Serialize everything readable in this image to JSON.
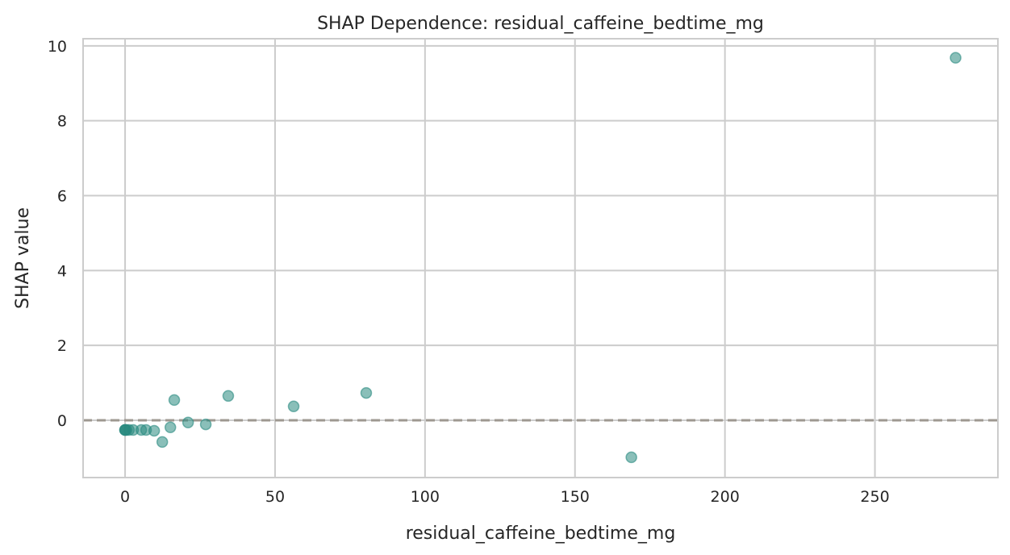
{
  "chart_data": {
    "type": "scatter",
    "title": "SHAP Dependence: residual_caffeine_bedtime_mg",
    "xlabel": "residual_caffeine_bedtime_mg",
    "ylabel": "SHAP value",
    "xlim": [
      -14,
      291
    ],
    "ylim": [
      -1.53,
      10.19
    ],
    "xticks": [
      0,
      50,
      100,
      150,
      200,
      250
    ],
    "yticks": [
      0,
      2,
      4,
      6,
      8,
      10
    ],
    "grid": true,
    "reference_line": {
      "y": 0,
      "style": "dashed",
      "color": "#9e9890"
    },
    "point_color": "#2a8a80",
    "points": [
      {
        "x": 0,
        "y": -0.26
      },
      {
        "x": 0,
        "y": -0.26
      },
      {
        "x": 0,
        "y": -0.26
      },
      {
        "x": 0.5,
        "y": -0.26
      },
      {
        "x": 1.3,
        "y": -0.26
      },
      {
        "x": 2.7,
        "y": -0.26
      },
      {
        "x": 5.4,
        "y": -0.26
      },
      {
        "x": 7.0,
        "y": -0.26
      },
      {
        "x": 9.7,
        "y": -0.28
      },
      {
        "x": 12.4,
        "y": -0.58
      },
      {
        "x": 15.1,
        "y": -0.19
      },
      {
        "x": 16.4,
        "y": 0.54
      },
      {
        "x": 21.0,
        "y": -0.06
      },
      {
        "x": 26.9,
        "y": -0.11
      },
      {
        "x": 34.4,
        "y": 0.65
      },
      {
        "x": 56.2,
        "y": 0.37
      },
      {
        "x": 80.4,
        "y": 0.73
      },
      {
        "x": 168.8,
        "y": -0.99
      },
      {
        "x": 276.9,
        "y": 9.68
      }
    ]
  }
}
